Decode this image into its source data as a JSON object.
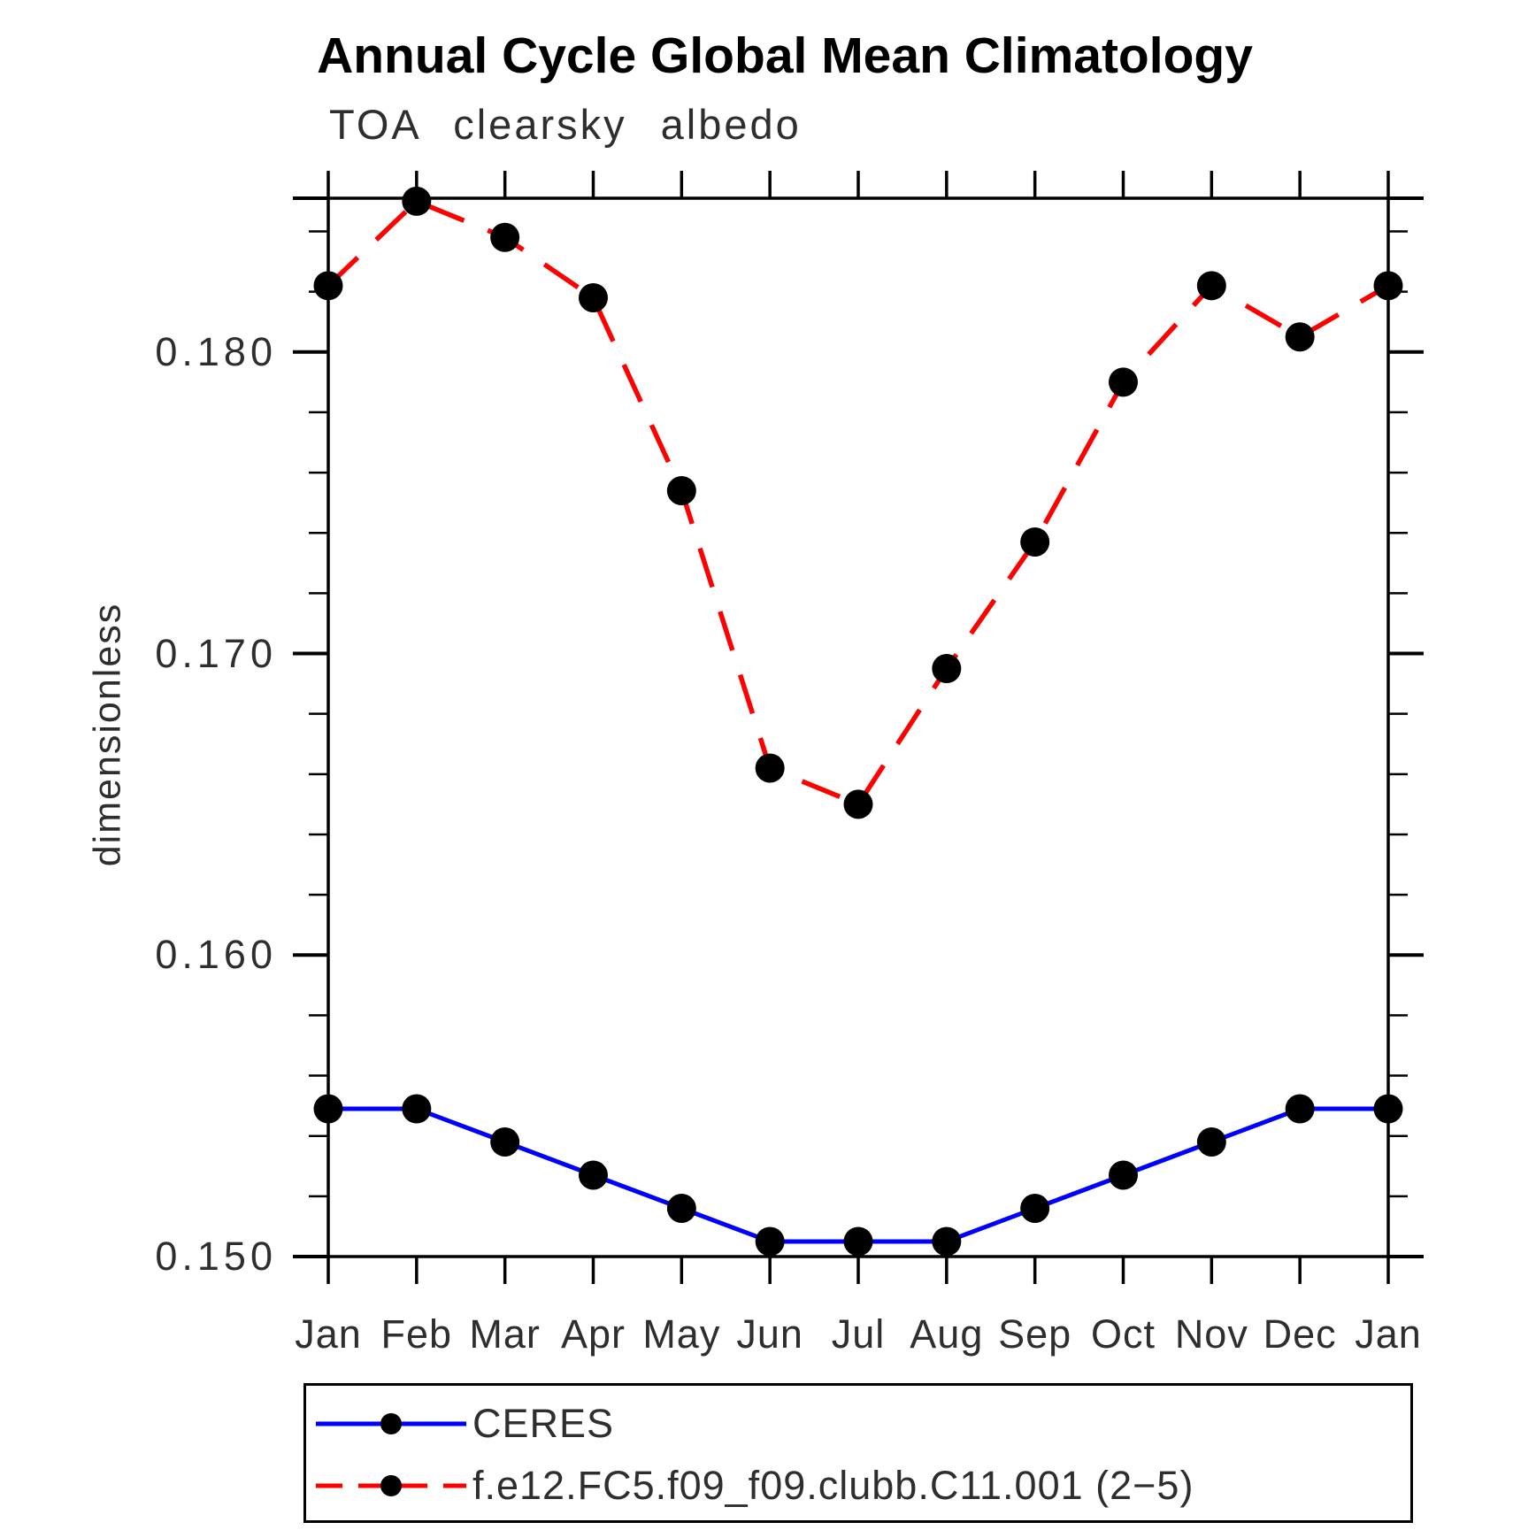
{
  "page": {
    "background": "#ffffff"
  },
  "chart_data": {
    "type": "line",
    "title": "Annual Cycle Global Mean Climatology",
    "subtitle": "TOA clearsky albedo",
    "ylabel": "dimensionless",
    "xlabel": "",
    "categories": [
      "Jan",
      "Feb",
      "Mar",
      "Apr",
      "May",
      "Jun",
      "Jul",
      "Aug",
      "Sep",
      "Oct",
      "Nov",
      "Dec",
      "Jan"
    ],
    "y_axis": {
      "min": 0.15,
      "max": 0.1851,
      "major_ticks": [
        0.15,
        0.16,
        0.17,
        0.18
      ],
      "major_tick_labels": [
        "0.150",
        "0.160",
        "0.170",
        "0.180"
      ],
      "minor_tick_interval": 0.002
    },
    "grid": false,
    "legend_position": "bottom-left",
    "series": [
      {
        "name": "CERES",
        "color": "#0000ff",
        "line_style": "solid",
        "marker": "filled-circle",
        "marker_color": "#000000",
        "values": [
          0.1549,
          0.1549,
          0.1538,
          0.1527,
          0.1516,
          0.1505,
          0.1505,
          0.1505,
          0.1516,
          0.1527,
          0.1538,
          0.1549,
          0.1549
        ]
      },
      {
        "name": "f.e12.FC5.f09_f09.clubb.C11.001 (2−5)",
        "color": "#ff0000",
        "line_style": "dashed",
        "marker": "filled-circle",
        "marker_color": "#000000",
        "values": [
          0.1822,
          0.185,
          0.1838,
          0.1818,
          0.1754,
          0.1662,
          0.165,
          0.1695,
          0.1737,
          0.179,
          0.1822,
          0.1805,
          0.1822
        ]
      }
    ]
  }
}
